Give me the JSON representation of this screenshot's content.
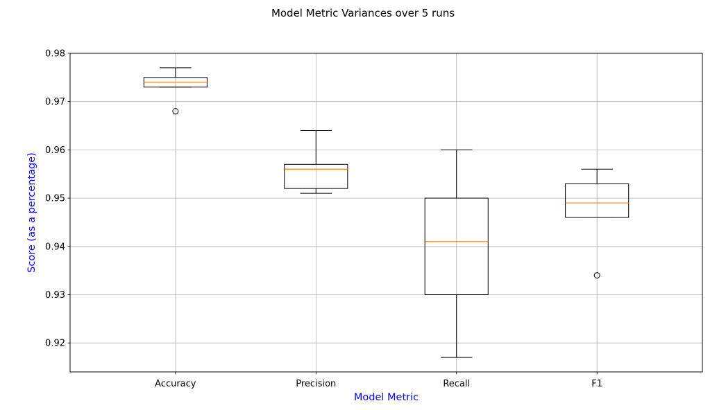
{
  "chart_data": {
    "type": "box",
    "title": "Model Metric Variances over 5 runs",
    "xlabel": "Model Metric",
    "ylabel": "Score (as a percentage)",
    "label_color": "#0000ff",
    "median_color": "#ff7f0e",
    "grid": true,
    "ylim": [
      0.914,
      0.98
    ],
    "yticks": [
      "0.92",
      "0.93",
      "0.94",
      "0.95",
      "0.96",
      "0.97",
      "0.98"
    ],
    "categories": [
      "Accuracy",
      "Precision",
      "Recall",
      "F1"
    ],
    "boxes": [
      {
        "name": "Accuracy",
        "whisker_low": 0.973,
        "q1": 0.973,
        "median": 0.974,
        "q3": 0.975,
        "whisker_high": 0.977,
        "outliers": [
          0.968
        ]
      },
      {
        "name": "Precision",
        "whisker_low": 0.951,
        "q1": 0.952,
        "median": 0.956,
        "q3": 0.957,
        "whisker_high": 0.964,
        "outliers": []
      },
      {
        "name": "Recall",
        "whisker_low": 0.917,
        "q1": 0.93,
        "median": 0.941,
        "q3": 0.95,
        "whisker_high": 0.96,
        "outliers": []
      },
      {
        "name": "F1",
        "whisker_low": 0.946,
        "q1": 0.946,
        "median": 0.949,
        "q3": 0.953,
        "whisker_high": 0.956,
        "outliers": [
          0.934
        ]
      }
    ]
  }
}
